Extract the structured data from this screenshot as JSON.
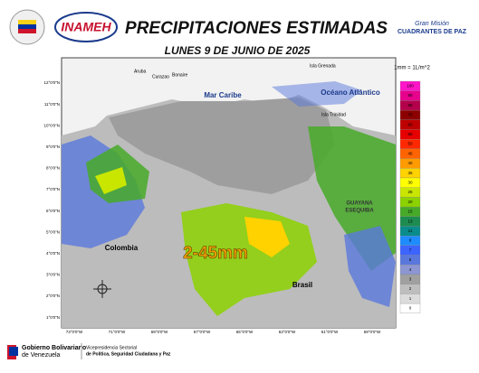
{
  "header": {
    "title": "PRECIPITACIONES ESTIMADAS",
    "date": "LUNES 9 DE JUNIO DE 2025",
    "logo_left": "INAMEH",
    "logo_right": [
      "Gran Misión",
      "CUADRANTES DE PAZ"
    ]
  },
  "map": {
    "labels": {
      "sea": "Mar Caribe",
      "ocean": "Océano Atlántico",
      "colombia": "Colombia",
      "brasil": "Brasil",
      "guayana": [
        "GUAYANA",
        "ESEQUIBA"
      ],
      "range": "2-45mm",
      "aruba": "Aruba",
      "curazao": "Curazao",
      "bonaire": "Bonaire",
      "grenada": "Isla Grenada",
      "trinidad": "Isla Trinidad"
    },
    "lat_labels": [
      "12°0'0\"N",
      "11°0'0\"N",
      "10°0'0\"N",
      "9°0'0\"N",
      "8°0'0\"N",
      "7°0'0\"N",
      "6°0'0\"N",
      "5°0'0\"N",
      "4°0'0\"N",
      "3°0'0\"N",
      "2°0'0\"N",
      "1°0'0\"N"
    ],
    "lon_labels": [
      "73°0'0\"W",
      "71°0'0\"W",
      "69°0'0\"W",
      "67°0'0\"W",
      "65°0'0\"W",
      "63°0'0\"W",
      "61°0'0\"W",
      "59°0'0\"W"
    ]
  },
  "legend": {
    "title": "1mm = 1L/m^2",
    "items": [
      {
        "value": 100,
        "color": "#ff14c8"
      },
      {
        "value": 90,
        "color": "#e6008c"
      },
      {
        "value": 80,
        "color": "#b4004b"
      },
      {
        "value": 70,
        "color": "#8c0000"
      },
      {
        "value": 60,
        "color": "#be0000"
      },
      {
        "value": 55,
        "color": "#e60000"
      },
      {
        "value": 50,
        "color": "#ff2800"
      },
      {
        "value": 45,
        "color": "#ff6400"
      },
      {
        "value": 40,
        "color": "#ff9b00"
      },
      {
        "value": 35,
        "color": "#ffd200"
      },
      {
        "value": 30,
        "color": "#ffff00"
      },
      {
        "value": 25,
        "color": "#c8e600"
      },
      {
        "value": 20,
        "color": "#8cd200"
      },
      {
        "value": 15,
        "color": "#46aa28"
      },
      {
        "value": 13,
        "color": "#1e8c50"
      },
      {
        "value": 11,
        "color": "#0a8c8c"
      },
      {
        "value": 9,
        "color": "#1e8cff"
      },
      {
        "value": 7,
        "color": "#3c64ff"
      },
      {
        "value": 5,
        "color": "#5a78dc"
      },
      {
        "value": 4,
        "color": "#8c96d2"
      },
      {
        "value": 3,
        "color": "#a0a0a0"
      },
      {
        "value": 2,
        "color": "#bebebe"
      },
      {
        "value": 1,
        "color": "#dcdcdc"
      },
      {
        "value": 0,
        "color": "#ffffff"
      }
    ]
  },
  "footer": {
    "gov": [
      "Gobierno Bolivariano",
      "de Venezuela"
    ],
    "vice": [
      "Vicepresidencia Sectorial",
      "de Política, Seguridad Ciudadana y Paz"
    ]
  }
}
